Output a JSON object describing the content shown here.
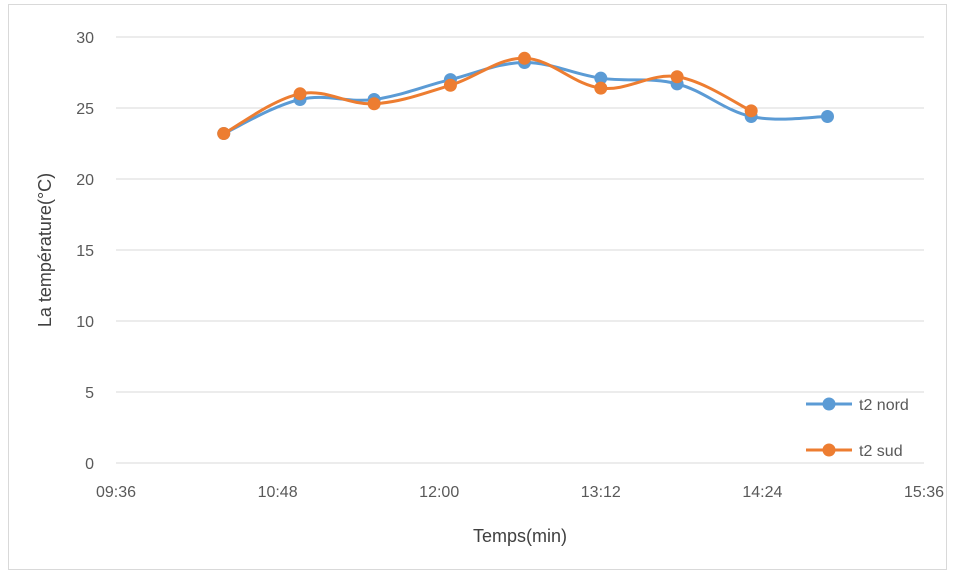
{
  "chart_data": {
    "type": "line",
    "title": "",
    "xlabel": "Temps(min)",
    "ylabel": "La température(°C)",
    "x_ticks": [
      "09:36",
      "10:48",
      "12:00",
      "13:12",
      "14:24",
      "15:36"
    ],
    "xlim": [
      "09:36",
      "15:36"
    ],
    "ylim": [
      0,
      30
    ],
    "y_ticks": [
      0,
      5,
      10,
      15,
      20,
      25,
      30
    ],
    "grid": "horizontal",
    "smooth": true,
    "legend_position": "bottom-right",
    "series": [
      {
        "name": "t2 nord",
        "color": "#5b9bd5",
        "x": [
          "10:24",
          "10:58",
          "11:31",
          "12:05",
          "12:38",
          "13:12",
          "13:46",
          "14:19",
          "14:53"
        ],
        "values": [
          23.2,
          25.6,
          25.6,
          27.0,
          28.2,
          27.1,
          26.7,
          24.4,
          24.4
        ]
      },
      {
        "name": "t2 sud",
        "color": "#ed7d31",
        "x": [
          "10:24",
          "10:58",
          "11:31",
          "12:05",
          "12:38",
          "13:12",
          "13:46",
          "14:19"
        ],
        "values": [
          23.2,
          26.0,
          25.3,
          26.6,
          28.5,
          26.4,
          27.2,
          24.8
        ]
      }
    ]
  }
}
